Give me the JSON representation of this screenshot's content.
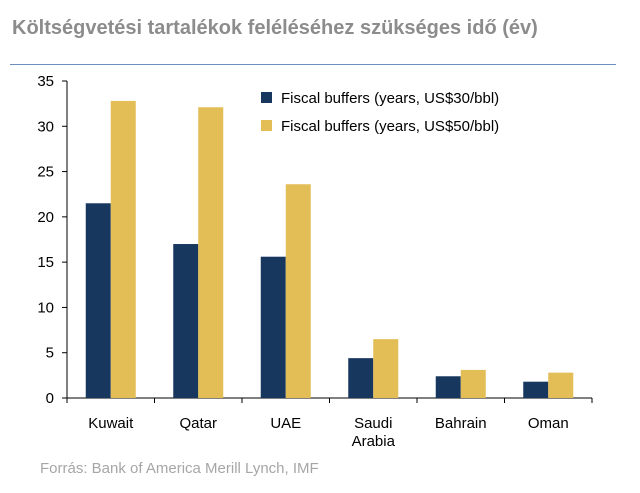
{
  "title": "Költségvetési tartalékok feléléséhez szükséges idő (év)",
  "source": "Forrás: Bank of America Merill Lynch, IMF",
  "chart_data": {
    "type": "bar",
    "title": "Költségvetési tartalékok feléléséhez szükséges idő (év)",
    "xlabel": "",
    "ylabel": "",
    "categories": [
      "Kuwait",
      "Qatar",
      "UAE",
      "Saudi Arabia",
      "Bahrain",
      "Oman"
    ],
    "category_lines": [
      [
        "Kuwait"
      ],
      [
        "Qatar"
      ],
      [
        "UAE"
      ],
      [
        "Saudi",
        "Arabia"
      ],
      [
        "Bahrain"
      ],
      [
        "Oman"
      ]
    ],
    "series": [
      {
        "name": "Fiscal buffers (years, US$30/bbl)",
        "color": "#17375e",
        "values": [
          21.5,
          17.0,
          15.6,
          4.4,
          2.4,
          1.8
        ]
      },
      {
        "name": "Fiscal buffers (years, US$50/bbl)",
        "color": "#e3be56",
        "values": [
          32.8,
          32.1,
          23.6,
          6.5,
          3.1,
          2.8
        ]
      }
    ],
    "ylim": [
      0,
      35
    ],
    "yticks": [
      0,
      5,
      10,
      15,
      20,
      25,
      30,
      35
    ],
    "grid": false,
    "legend_position": "top-right"
  }
}
